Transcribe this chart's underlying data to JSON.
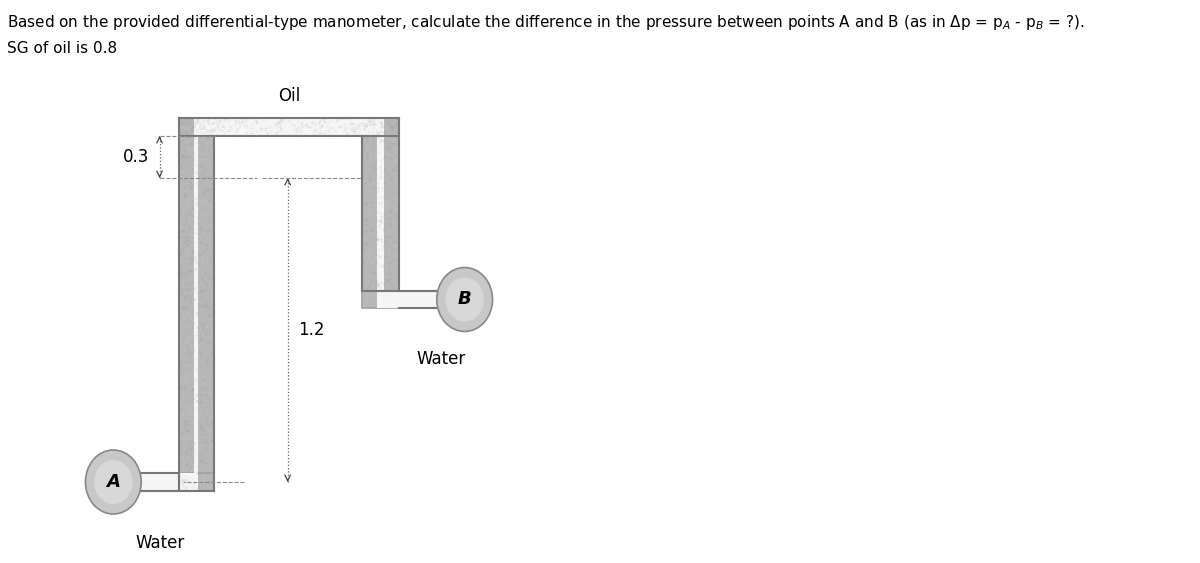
{
  "title_line1": "Based on the provided differential-type manometer, calculate the difference in the pressure between points A and B (as in Δp = pₐ - pʙ = ?).",
  "title_line2": "SG of oil is 0.8",
  "background_color": "#ffffff",
  "wall_color": "#a0a0a0",
  "wall_face": "#b8b8b8",
  "inner_color": "#f5f5f5",
  "circle_face": "#c0c0c0",
  "circle_edge": "#888888",
  "label_A": "A",
  "label_B": "B",
  "label_oil": "Oil",
  "label_water_A": "Water",
  "label_water_B": "Water",
  "dim_03": "0.3",
  "dim_12": "1.2",
  "font_size_title": 11,
  "font_size_labels": 12,
  "font_size_dims": 12,
  "font_size_AB": 13,
  "arrow_color": "#444444",
  "dim_line_color": "#888888"
}
